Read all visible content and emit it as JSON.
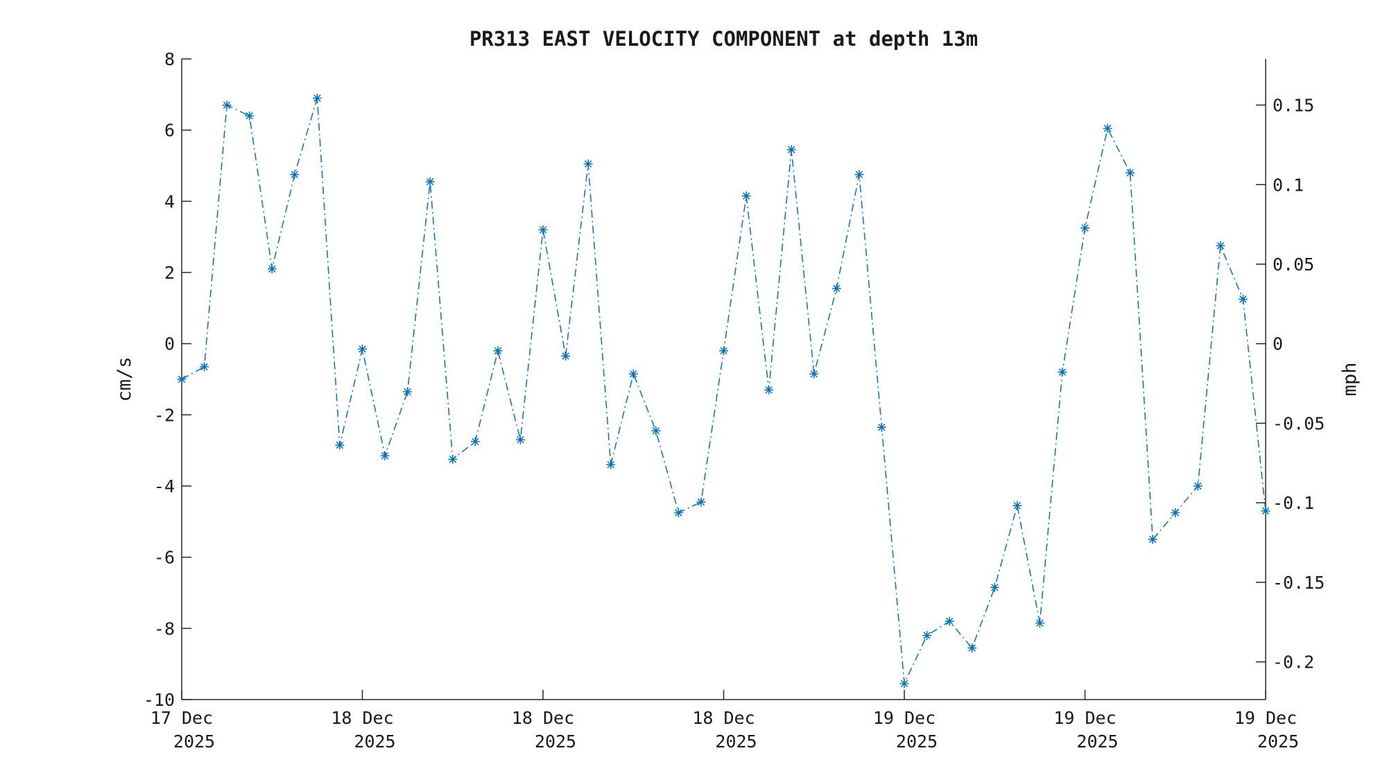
{
  "chart_data": {
    "type": "line",
    "title": "PR313 EAST VELOCITY COMPONENT at depth 13m",
    "ylabel": "cm/s",
    "y2label": "mph",
    "ylim": [
      -10,
      8
    ],
    "y2lim": [
      -0.2237,
      0.179
    ],
    "yticks": [
      -10,
      -8,
      -6,
      -4,
      -2,
      0,
      2,
      4,
      6,
      8
    ],
    "y2ticks": [
      -0.2,
      -0.15,
      -0.1,
      -0.05,
      0,
      0.05,
      0.1,
      0.15
    ],
    "xlim": [
      0,
      48
    ],
    "xticks": [
      {
        "x": 0,
        "label1": "17 Dec",
        "label2": "2025"
      },
      {
        "x": 8,
        "label1": "18 Dec",
        "label2": "2025"
      },
      {
        "x": 16,
        "label1": "18 Dec",
        "label2": "2025"
      },
      {
        "x": 24,
        "label1": "18 Dec",
        "label2": "2025"
      },
      {
        "x": 32,
        "label1": "19 Dec",
        "label2": "2025"
      },
      {
        "x": 40,
        "label1": "19 Dec",
        "label2": "2025"
      },
      {
        "x": 48,
        "label1": "19 Dec",
        "label2": "2025"
      }
    ],
    "line_style": "dash-dot",
    "marker": "asterisk",
    "color": "#0072BD",
    "grid": false,
    "series": [
      {
        "x": [
          0,
          1,
          2,
          3,
          4,
          5,
          6,
          7,
          8,
          9,
          10,
          11,
          12,
          13,
          14,
          15,
          16,
          17,
          18,
          19,
          20,
          21,
          22,
          23,
          24,
          25,
          26,
          27,
          28,
          29,
          30,
          31,
          32,
          33,
          34,
          35,
          36,
          37,
          38,
          39,
          40,
          41,
          42,
          43,
          44,
          45,
          46,
          47,
          48
        ],
        "values": [
          -1.0,
          -0.65,
          6.7,
          6.4,
          2.1,
          4.75,
          6.9,
          -2.85,
          -0.15,
          -3.15,
          -1.35,
          4.55,
          -3.25,
          -2.75,
          -0.2,
          -2.7,
          3.2,
          -0.35,
          5.05,
          -3.4,
          -0.85,
          -2.45,
          -4.75,
          -4.45,
          -0.2,
          4.15,
          -1.3,
          5.45,
          -0.85,
          1.55,
          4.75,
          -2.35,
          -9.55,
          -8.2,
          -7.8,
          -8.55,
          -6.85,
          -4.55,
          -7.85,
          -0.8,
          3.25,
          6.05,
          4.8,
          -5.5,
          -4.75,
          -4.0,
          2.75,
          1.25,
          -4.7
        ]
      }
    ]
  }
}
